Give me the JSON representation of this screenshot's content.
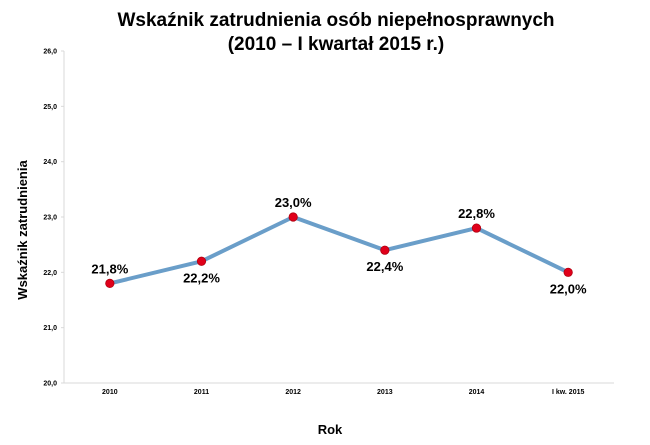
{
  "chart_data": {
    "type": "line",
    "title": "Wskaźnik zatrudnienia osób niepełnosprawnych",
    "subtitle": "(2010 – I kwartał 2015 r.)",
    "xlabel": "Rok",
    "ylabel": "Wskaźnik zatrudnienia",
    "categories": [
      "2010",
      "2011",
      "2012",
      "2013",
      "2014",
      "I kw. 2015"
    ],
    "series": [
      {
        "values": [
          21.8,
          22.2,
          23.0,
          22.4,
          22.8,
          22.0
        ]
      }
    ],
    "data_labels": [
      "21,8%",
      "22,2%",
      "23,0%",
      "22,4%",
      "22,8%",
      "22,0%"
    ],
    "label_position": [
      "above",
      "below",
      "above",
      "below",
      "above",
      "below"
    ],
    "ylim": [
      20.0,
      26.0
    ],
    "yticks": [
      20.0,
      21.0,
      22.0,
      23.0,
      24.0,
      25.0,
      26.0
    ],
    "ytick_labels": [
      "20,0",
      "21,0",
      "22,0",
      "23,0",
      "24,0",
      "25,0",
      "26,0"
    ],
    "grid": false,
    "legend": "none",
    "colors": {
      "line": "#6a9ec9",
      "marker": "#e0001a",
      "marker_edge": "#b00010",
      "axis": "#d9d9d9"
    }
  }
}
